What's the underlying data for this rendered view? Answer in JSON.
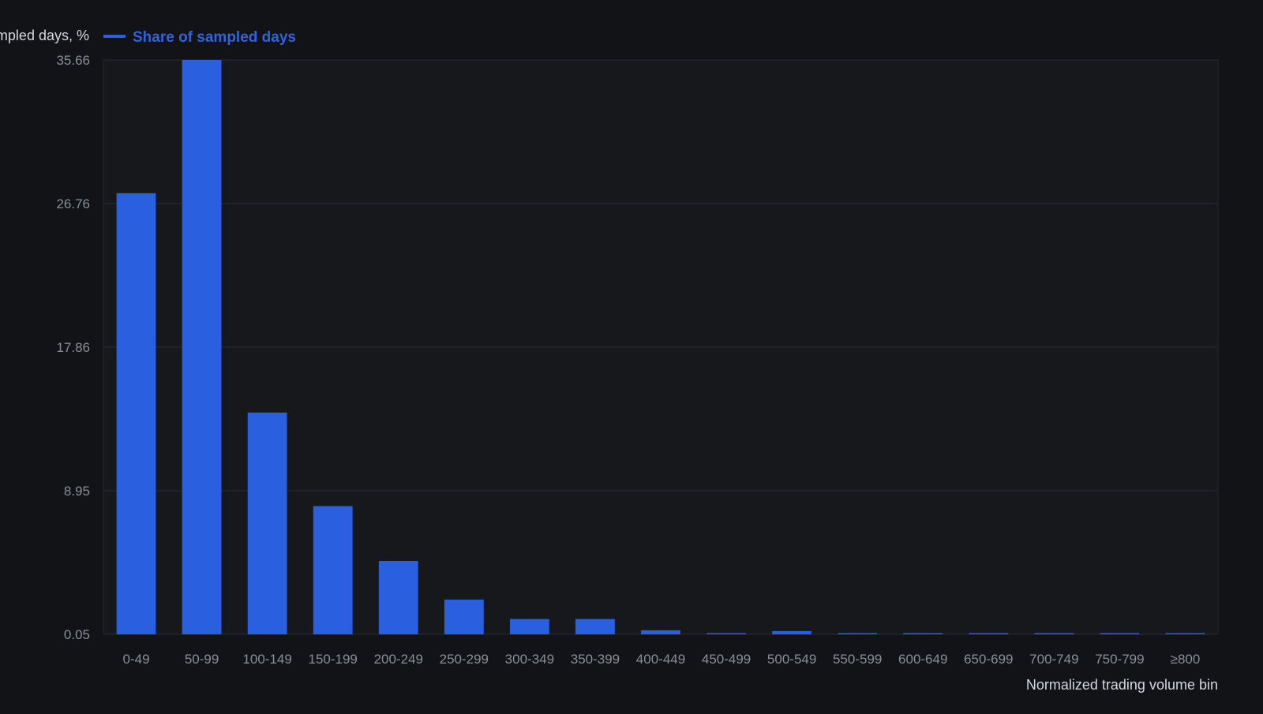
{
  "chart_data": {
    "type": "bar",
    "title": "",
    "ylabel": "Share of sampled days, %",
    "xlabel": "Normalized trading volume bin",
    "legend": {
      "placement": "top-left",
      "entries": [
        "Share of sampled days"
      ]
    },
    "series": [
      {
        "name": "Share of sampled days",
        "color": "#2a5fdf",
        "values": [
          27.4,
          35.66,
          13.8,
          8.0,
          4.6,
          2.2,
          1.0,
          1.0,
          0.3,
          0.1,
          0.25,
          0.05,
          0.03,
          0.02,
          0.02,
          0.02,
          0.1
        ]
      }
    ],
    "categories": [
      "0-49",
      "50-99",
      "100-149",
      "150-199",
      "200-249",
      "250-299",
      "300-349",
      "350-399",
      "400-449",
      "450-499",
      "500-549",
      "550-599",
      "600-649",
      "650-699",
      "700-749",
      "750-799",
      "≥800"
    ],
    "y_ticks": [
      "0.05",
      "8.95",
      "17.86",
      "26.76",
      "35.66"
    ],
    "ylim": [
      0.05,
      35.66
    ],
    "grid": true,
    "colors": {
      "background": "#111317",
      "plot_background": "#16181c",
      "grid": "#2a2d33",
      "bar": "#2a5fdf",
      "legend_text": "#2f63e0"
    }
  }
}
